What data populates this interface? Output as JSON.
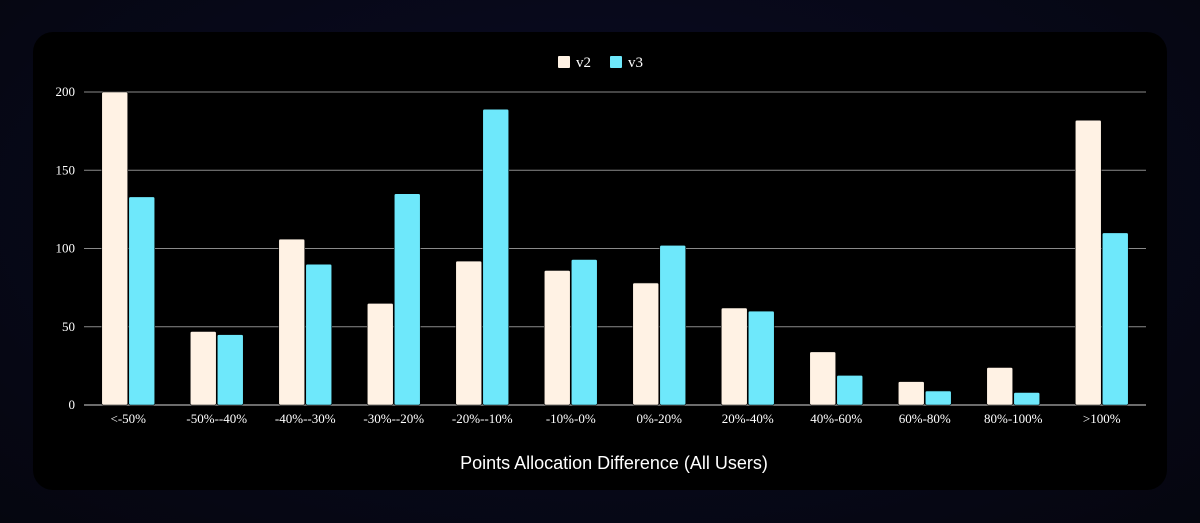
{
  "chart_data": {
    "type": "bar",
    "title": "",
    "xlabel": "Points Allocation Difference (All Users)",
    "ylabel": "",
    "ylim": [
      0,
      200
    ],
    "yticks": [
      0,
      50,
      100,
      150,
      200
    ],
    "grid": true,
    "legend_position": "top-center",
    "categories": [
      "<-50%",
      "-50%--40%",
      "-40%--30%",
      "-30%--20%",
      "-20%--10%",
      "-10%-0%",
      "0%-20%",
      "20%-40%",
      "40%-60%",
      "60%-80%",
      "80%-100%",
      ">100%"
    ],
    "series": [
      {
        "name": "v2",
        "color": "#fff2e4",
        "values": [
          200,
          47,
          106,
          65,
          92,
          86,
          78,
          62,
          34,
          15,
          24,
          182
        ]
      },
      {
        "name": "v3",
        "color": "#6ee8fb",
        "values": [
          133,
          45,
          90,
          135,
          189,
          93,
          102,
          60,
          19,
          9,
          8,
          110
        ]
      }
    ]
  }
}
